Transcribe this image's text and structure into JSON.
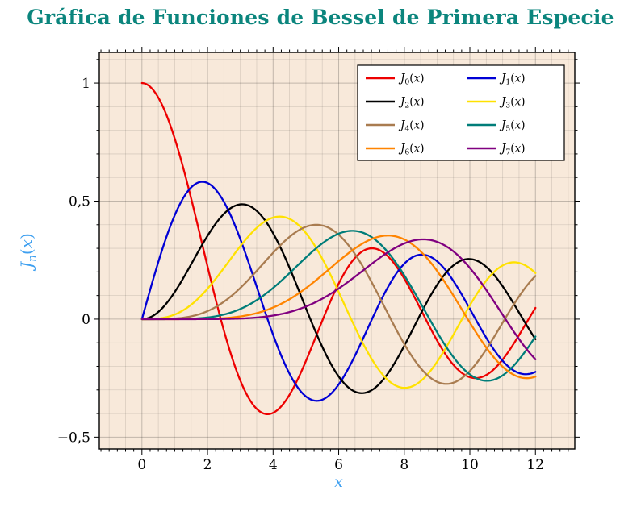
{
  "title": {
    "text": "Gráfica de Funciones de Bessel de Primera Especie",
    "color": "#0b857d"
  },
  "axes": {
    "x_label": "x",
    "y_label": "J_n(x)",
    "label_color": "#3fa0f0",
    "xlim": [
      -1.3,
      13.2
    ],
    "ylim": [
      -0.55,
      1.13
    ],
    "plot_bg": "#f8e9da",
    "grid_minor": "rgba(0,0,0,0.12)",
    "grid_major": "rgba(0,0,0,0.22)",
    "x_ticks": [
      {
        "v": 0,
        "label": "0"
      },
      {
        "v": 2,
        "label": "2"
      },
      {
        "v": 4,
        "label": "4"
      },
      {
        "v": 6,
        "label": "6"
      },
      {
        "v": 8,
        "label": "8"
      },
      {
        "v": 10,
        "label": "10"
      },
      {
        "v": 12,
        "label": "12"
      }
    ],
    "y_ticks": [
      {
        "v": 1,
        "label": "1"
      },
      {
        "v": 0.5,
        "label": "0,5"
      },
      {
        "v": 0,
        "label": "0"
      },
      {
        "v": -0.5,
        "label": "−0,5"
      }
    ]
  },
  "chart_data": {
    "type": "line",
    "title": "Gráfica de Funciones de Bessel de Primera Especie",
    "xlabel": "x",
    "ylabel": "J_n(x)",
    "function": "bessel_j_first_kind",
    "x_domain": [
      0,
      12
    ],
    "grid": "both",
    "legend_position": "top-right",
    "x_samples": [
      0,
      1,
      2,
      3,
      4,
      5,
      6,
      7,
      8,
      9,
      10,
      11,
      12
    ],
    "series": [
      {
        "name": "J_0(x)",
        "order": 0,
        "color": "#ed0000",
        "values": [
          1,
          0.7652,
          0.2239,
          -0.2601,
          -0.3971,
          -0.1776,
          0.1506,
          0.3001,
          0.1717,
          -0.0903,
          -0.2459,
          -0.1712,
          0.0477
        ]
      },
      {
        "name": "J_1(x)",
        "order": 1,
        "color": "#0000d5",
        "values": [
          0,
          0.4401,
          0.5767,
          0.3391,
          -0.066,
          -0.3276,
          -0.2767,
          -0.0047,
          0.2346,
          0.2453,
          0.0435,
          -0.1768,
          -0.2234
        ]
      },
      {
        "name": "J_2(x)",
        "order": 2,
        "color": "#000000",
        "values": [
          0,
          0.1149,
          0.3528,
          0.4861,
          0.3641,
          0.0466,
          -0.2429,
          -0.3014,
          -0.113,
          0.1448,
          0.2546,
          0.139,
          -0.0849
        ]
      },
      {
        "name": "J_3(x)",
        "order": 3,
        "color": "#ffe100",
        "values": [
          0,
          0.0196,
          0.1289,
          0.3091,
          0.4302,
          0.3648,
          0.1148,
          -0.1676,
          -0.2911,
          -0.1809,
          0.0584,
          0.2273,
          0.1951
        ]
      },
      {
        "name": "J_4(x)",
        "order": 4,
        "color": "#a97c50",
        "values": [
          0,
          0.0025,
          0.034,
          0.132,
          0.2811,
          0.3912,
          0.3576,
          0.1578,
          -0.1054,
          -0.2655,
          -0.2196,
          -0.015,
          0.1825
        ]
      },
      {
        "name": "J_5(x)",
        "order": 5,
        "color": "#007d79",
        "values": [
          0,
          0.0002,
          0.007,
          0.043,
          0.1321,
          0.2611,
          0.3621,
          0.3479,
          0.1858,
          -0.055,
          -0.2341,
          -0.2383,
          -0.0735
        ]
      },
      {
        "name": "J_6(x)",
        "order": 6,
        "color": "#ff8400",
        "values": [
          0,
          0,
          0.0012,
          0.0114,
          0.0491,
          0.131,
          0.2458,
          0.3392,
          0.3376,
          0.2043,
          -0.0145,
          -0.2016,
          -0.2437
        ]
      },
      {
        "name": "J_7(x)",
        "order": 7,
        "color": "#800080",
        "values": [
          0,
          0,
          0.0002,
          0.0025,
          0.0152,
          0.0534,
          0.1296,
          0.2336,
          0.3206,
          0.3275,
          0.2167,
          0.0184,
          -0.1703
        ]
      }
    ]
  }
}
